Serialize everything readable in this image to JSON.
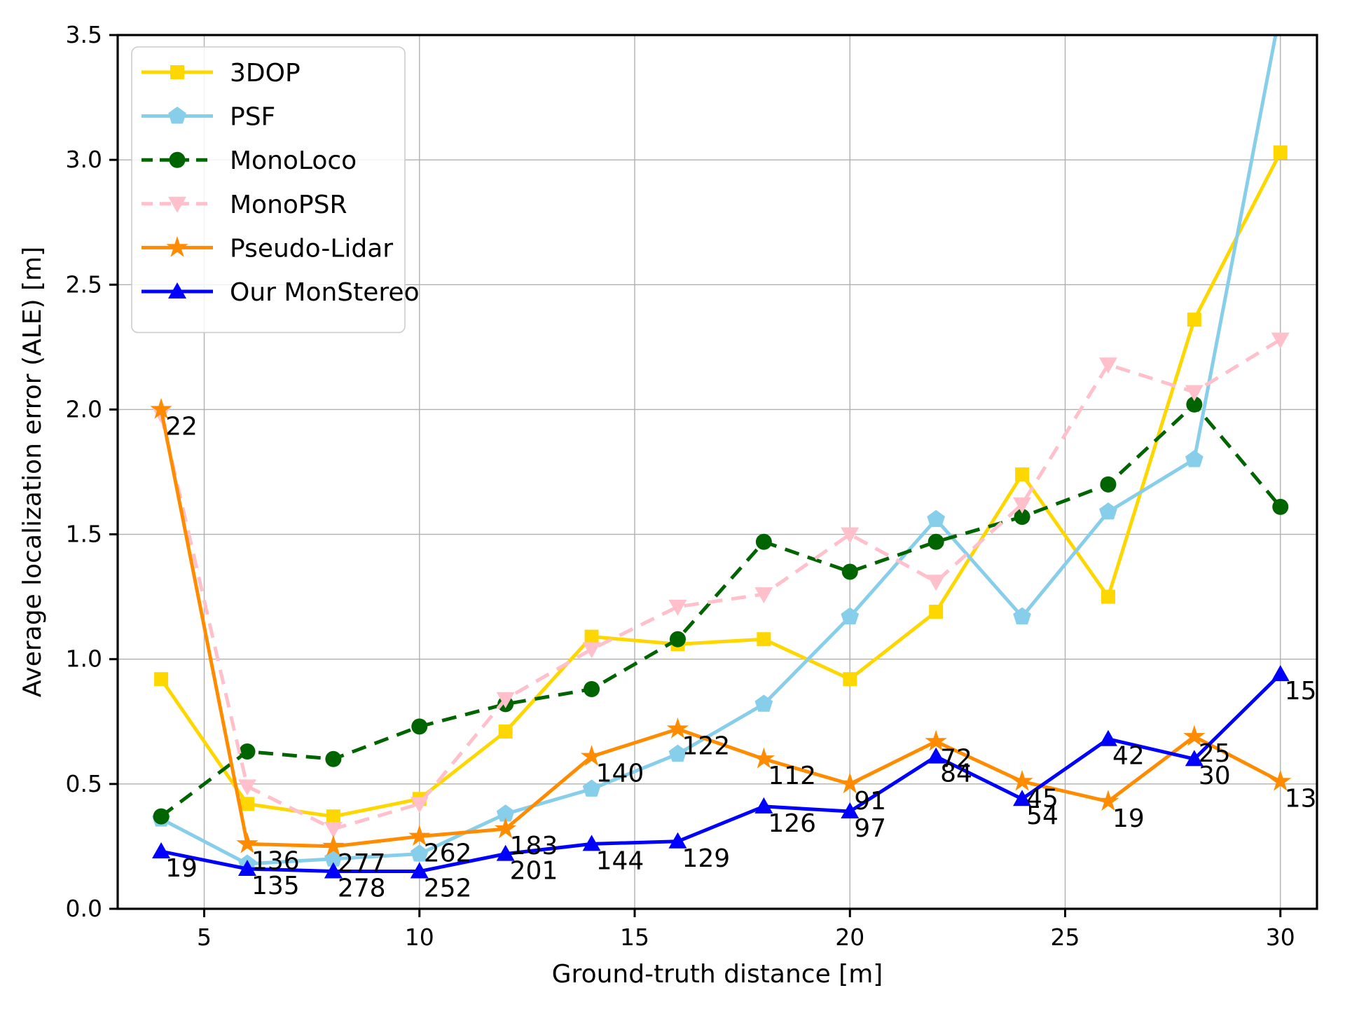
{
  "chart_data": {
    "type": "line",
    "title": "",
    "xlabel": "Ground-truth distance [m]",
    "ylabel": "Average localization error (ALE) [m]",
    "x": [
      4,
      6,
      8,
      10,
      12,
      14,
      16,
      18,
      20,
      22,
      24,
      26,
      28,
      30
    ],
    "xlim": [
      2.99,
      30.85
    ],
    "ylim": [
      0,
      3.5
    ],
    "xticks": [
      5,
      10,
      15,
      20,
      25,
      30
    ],
    "yticks": [
      0.0,
      0.5,
      1.0,
      1.5,
      2.0,
      2.5,
      3.0,
      3.5
    ],
    "grid": true,
    "legend_position": "upper-left",
    "series": [
      {
        "name": "3DOP",
        "color": "#ffd700",
        "line": "solid",
        "marker": "square",
        "values": [
          0.92,
          0.42,
          0.37,
          0.44,
          0.71,
          1.09,
          1.06,
          1.08,
          0.92,
          1.19,
          1.74,
          1.25,
          2.36,
          3.03
        ]
      },
      {
        "name": "PSF",
        "color": "#87ceeb",
        "line": "solid",
        "marker": "pentagon",
        "values": [
          0.36,
          0.18,
          0.2,
          0.22,
          0.38,
          0.48,
          0.62,
          0.82,
          1.17,
          1.56,
          1.17,
          1.59,
          1.8,
          3.6
        ]
      },
      {
        "name": "MonoLoco",
        "color": "#006400",
        "line": "dashed",
        "marker": "circle",
        "values": [
          0.37,
          0.63,
          0.6,
          0.73,
          0.82,
          0.88,
          1.08,
          1.47,
          1.35,
          1.47,
          1.57,
          1.7,
          2.02,
          1.61
        ]
      },
      {
        "name": "MonoPSR",
        "color": "#ffc0cb",
        "line": "dashed",
        "marker": "triangle-down",
        "values": [
          1.98,
          0.49,
          0.32,
          0.42,
          0.84,
          1.04,
          1.21,
          1.26,
          1.5,
          1.31,
          1.62,
          2.18,
          2.07,
          2.28
        ]
      },
      {
        "name": "Pseudo-Lidar",
        "color": "#ff8c00",
        "line": "solid",
        "marker": "star",
        "values": [
          2.0,
          0.26,
          0.25,
          0.29,
          0.32,
          0.61,
          0.72,
          0.6,
          0.5,
          0.67,
          0.51,
          0.43,
          0.69,
          0.51
        ],
        "point_labels": [
          "22",
          "136",
          "277",
          "262",
          "183",
          "140",
          "122",
          "112",
          "91",
          "72",
          "45",
          "19",
          "25",
          "13"
        ]
      },
      {
        "name": "Our MonStereo",
        "color": "#0000ff",
        "line": "solid",
        "marker": "triangle-up",
        "values": [
          0.23,
          0.16,
          0.15,
          0.15,
          0.22,
          0.26,
          0.27,
          0.41,
          0.39,
          0.61,
          0.44,
          0.68,
          0.6,
          0.94
        ],
        "point_labels": [
          "19",
          "135",
          "278",
          "252",
          "201",
          "144",
          "129",
          "126",
          "97",
          "84",
          "54",
          "42",
          "30",
          "15"
        ]
      }
    ]
  }
}
